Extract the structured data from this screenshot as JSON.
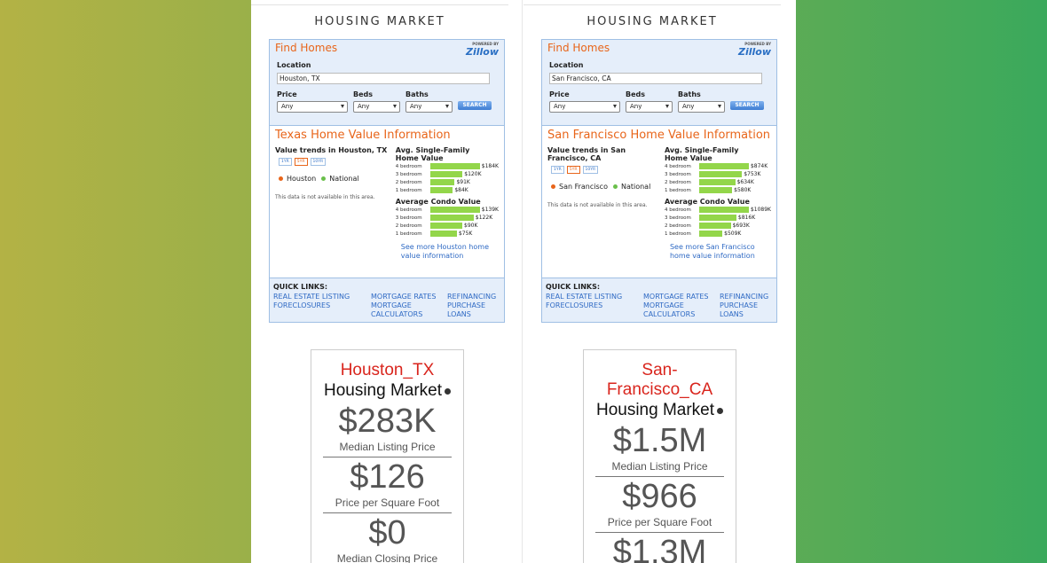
{
  "columns": [
    {
      "heading": "HOUSING MARKET",
      "widget": {
        "title": "Find Homes",
        "powered_by": "POWERED BY",
        "brand": "Zillow",
        "location_label": "Location",
        "location_value": "Houston, TX",
        "fields": [
          {
            "label": "Price",
            "value": "Any"
          },
          {
            "label": "Beds",
            "value": "Any"
          },
          {
            "label": "Baths",
            "value": "Any"
          }
        ],
        "search": "SEARCH",
        "info_title": "Texas Home Value Information",
        "trends_title": "Value trends in Houston, TX",
        "trend_buttons": [
          "1YR",
          "5YR",
          "10YR"
        ],
        "legend": [
          {
            "name": "Houston",
            "color": "#e8651a"
          },
          {
            "name": "National",
            "color": "#6abf4b"
          }
        ],
        "unavailable": "This data is not available in this area.",
        "groups": [
          {
            "title": "Avg. Single-Family Home Value",
            "labels": [
              "4 bedroom",
              "3 bedroom",
              "2 bedroom",
              "1 bedroom"
            ],
            "values": [
              184000,
              120000,
              91000,
              84000
            ],
            "value_labels": [
              "$184K",
              "$120K",
              "$91K",
              "$84K"
            ]
          },
          {
            "title": "Average Condo Value",
            "labels": [
              "4 bedroom",
              "3 bedroom",
              "2 bedroom",
              "1 bedroom"
            ],
            "values": [
              139000,
              122000,
              90000,
              75000
            ],
            "value_labels": [
              "$139K",
              "$122K",
              "$90K",
              "$75K"
            ]
          }
        ],
        "see_more": "See more Houston home value information",
        "quick_links_label": "QUICK LINKS:",
        "quick_links": [
          "REAL ESTATE LISTING",
          "MORTGAGE RATES",
          "REFINANCING",
          "FORECLOSURES",
          "MORTGAGE CALCULATORS",
          "PURCHASE LOANS"
        ]
      },
      "card": {
        "location": "Houston_TX",
        "title": "Housing Market",
        "stats": [
          {
            "value": "$283K",
            "label": "Median Listing Price"
          },
          {
            "value": "$126",
            "label": "Price per Square Foot"
          },
          {
            "value": "$0",
            "label": "Median Closing Price"
          }
        ]
      }
    },
    {
      "heading": "HOUSING MARKET",
      "widget": {
        "title": "Find Homes",
        "powered_by": "POWERED BY",
        "brand": "Zillow",
        "location_label": "Location",
        "location_value": "San Francisco, CA",
        "fields": [
          {
            "label": "Price",
            "value": "Any"
          },
          {
            "label": "Beds",
            "value": "Any"
          },
          {
            "label": "Baths",
            "value": "Any"
          }
        ],
        "search": "SEARCH",
        "info_title": "San Francisco Home Value Information",
        "trends_title": "Value trends in San Francisco, CA",
        "trend_buttons": [
          "1YR",
          "5YR",
          "10YR"
        ],
        "legend": [
          {
            "name": "San Francisco",
            "color": "#e8651a"
          },
          {
            "name": "National",
            "color": "#6abf4b"
          }
        ],
        "unavailable": "This data is not available in this area.",
        "groups": [
          {
            "title": "Avg. Single-Family Home Value",
            "labels": [
              "4 bedroom",
              "3 bedroom",
              "2 bedroom",
              "1 bedroom"
            ],
            "values": [
              874000,
              753000,
              634000,
              580000
            ],
            "value_labels": [
              "$874K",
              "$753K",
              "$634K",
              "$580K"
            ]
          },
          {
            "title": "Average Condo Value",
            "labels": [
              "4 bedroom",
              "3 bedroom",
              "2 bedroom",
              "1 bedroom"
            ],
            "values": [
              1089000,
              816000,
              693000,
              509000
            ],
            "value_labels": [
              "$1089K",
              "$816K",
              "$693K",
              "$509K"
            ]
          }
        ],
        "see_more": "See more San Francisco home value information",
        "quick_links_label": "QUICK LINKS:",
        "quick_links": [
          "REAL ESTATE LISTING",
          "MORTGAGE RATES",
          "REFINANCING",
          "FORECLOSURES",
          "MORTGAGE CALCULATORS",
          "PURCHASE LOANS"
        ]
      },
      "card": {
        "location": "San-Francisco_CA",
        "title": "Housing Market",
        "stats": [
          {
            "value": "$1.5M",
            "label": "Median Listing Price"
          },
          {
            "value": "$966",
            "label": "Price per Square Foot"
          },
          {
            "value": "$1.3M"
          }
        ]
      }
    }
  ]
}
